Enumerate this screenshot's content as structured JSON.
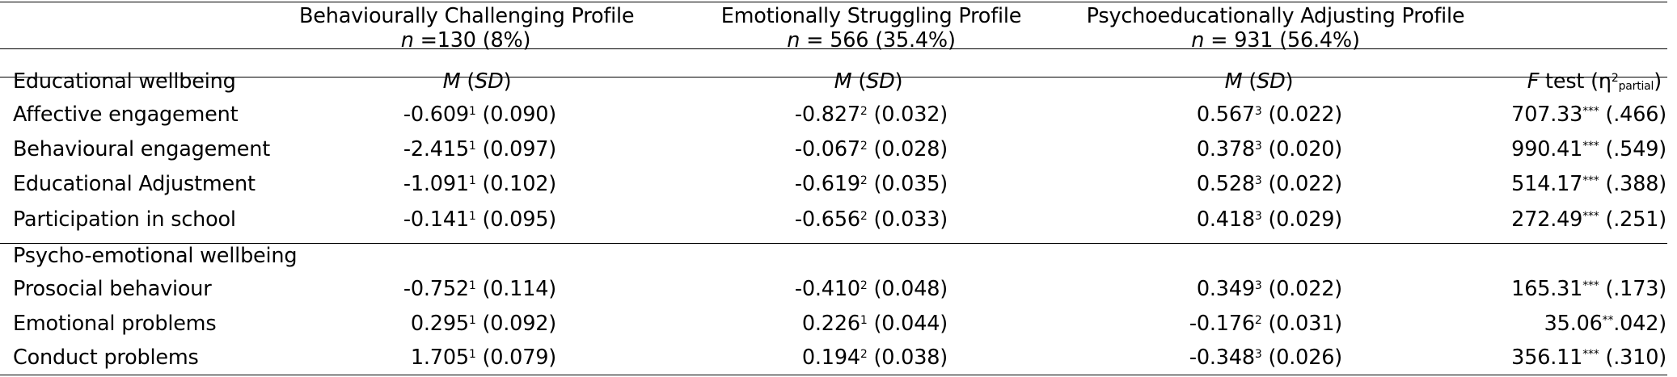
{
  "header": {
    "profiles": [
      {
        "name": "Behaviourally Challenging Profile",
        "n_label": "n",
        "n_text": " =130 (8%)"
      },
      {
        "name": "Emotionally Struggling Profile",
        "n_label": "n",
        "n_text": " = 566 (35.4%)"
      },
      {
        "name": "Psychoeducationally Adjusting Profile",
        "n_label": "n",
        "n_text": " = 931 (56.4%)"
      }
    ]
  },
  "subheader": {
    "section": "Educational wellbeing",
    "m": "M",
    "sd_open": " (",
    "sd": "SD",
    "sd_close": ")",
    "f": "F",
    "f_text": " test (η",
    "f_sup": "2",
    "f_sub": "partial",
    "f_close": ")"
  },
  "rows": [
    {
      "label": "Affective engagement",
      "c1": {
        "v": "-0.609",
        "s": "1",
        "se": " (0.090)"
      },
      "c2": {
        "v": "-0.827",
        "s": "2",
        "se": " (0.032)"
      },
      "c3": {
        "v": "0.567",
        "s": "3",
        "se": " (0.022)"
      },
      "f": {
        "v": "707.33",
        "s": "***",
        "eta": " (.466)"
      }
    },
    {
      "label": "Behavioural engagement",
      "c1": {
        "v": "-2.415",
        "s": "1",
        "se": " (0.097)"
      },
      "c2": {
        "v": "-0.067",
        "s": "2",
        "se": " (0.028)"
      },
      "c3": {
        "v": "0.378",
        "s": "3",
        "se": " (0.020)"
      },
      "f": {
        "v": "990.41",
        "s": "***",
        "eta": " (.549)"
      }
    },
    {
      "label": "Educational Adjustment",
      "c1": {
        "v": "-1.091",
        "s": "1",
        "se": " (0.102)"
      },
      "c2": {
        "v": "-0.619",
        "s": "2",
        "se": " (0.035)"
      },
      "c3": {
        "v": "0.528",
        "s": "3",
        "se": " (0.022)"
      },
      "f": {
        "v": "514.17",
        "s": "***",
        "eta": " (.388)"
      }
    },
    {
      "label": "Participation in school",
      "c1": {
        "v": "-0.141",
        "s": "1",
        "se": " (0.095)"
      },
      "c2": {
        "v": "-0.656",
        "s": "2",
        "se": " (0.033)"
      },
      "c3": {
        "v": "0.418",
        "s": "3",
        "se": " (0.029)"
      },
      "f": {
        "v": "272.49",
        "s": "***",
        "eta": " (.251)"
      }
    }
  ],
  "section2": {
    "title": "Psycho-emotional wellbeing"
  },
  "rows2": [
    {
      "label": "Prosocial behaviour",
      "c1": {
        "v": "-0.752",
        "s": "1",
        "se": " (0.114)"
      },
      "c2": {
        "v": "-0.410",
        "s": "2",
        "se": " (0.048)"
      },
      "c3": {
        "v": "0.349",
        "s": "3",
        "se": " (0.022)"
      },
      "f": {
        "v": "165.31",
        "s": "***",
        "eta": " (.173)"
      }
    },
    {
      "label": "Emotional problems",
      "c1": {
        "v": "0.295",
        "s": "1",
        "se": " (0.092)"
      },
      "c2": {
        "v": "0.226",
        "s": "1",
        "se": " (0.044)"
      },
      "c3": {
        "v": "-0.176",
        "s": "2",
        "se": " (0.031)"
      },
      "f": {
        "v": "35.06",
        "s": "**",
        "eta": ".042)"
      }
    },
    {
      "label": "Conduct problems",
      "c1": {
        "v": "1.705",
        "s": "1",
        "se": " (0.079)"
      },
      "c2": {
        "v": "0.194",
        "s": "2",
        "se": " (0.038)"
      },
      "c3": {
        "v": "-0.348",
        "s": "3",
        "se": " (0.026)"
      },
      "f": {
        "v": "356.11",
        "s": "***",
        "eta": " (.310)"
      }
    }
  ]
}
